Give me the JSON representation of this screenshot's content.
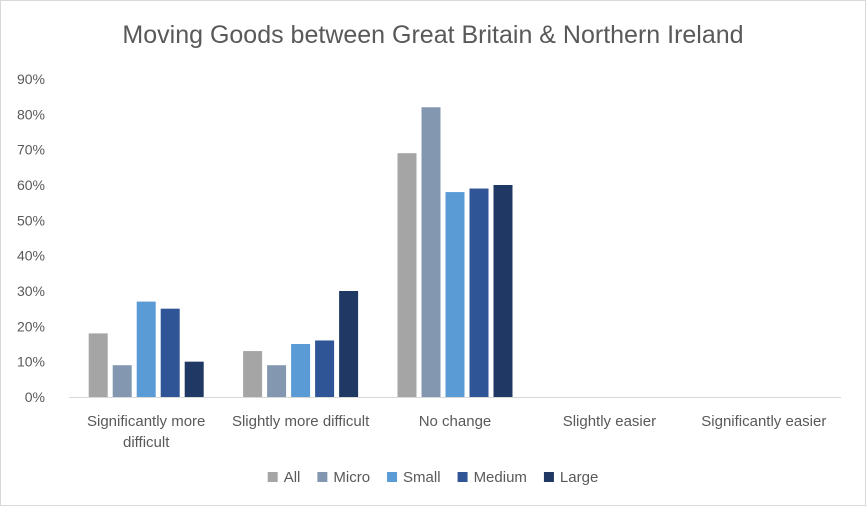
{
  "chart_data": {
    "type": "bar",
    "title": "Moving Goods between Great Britain & Northern Ireland",
    "xlabel": "",
    "ylabel": "",
    "categories": [
      [
        "Significantly more",
        "difficult"
      ],
      [
        "Slightly more difficult"
      ],
      [
        "No change"
      ],
      [
        "Slightly easier"
      ],
      [
        "Significantly easier"
      ]
    ],
    "ylim": [
      0,
      90
    ],
    "yticks": [
      "0%",
      "10%",
      "20%",
      "30%",
      "40%",
      "50%",
      "60%",
      "70%",
      "80%",
      "90%"
    ],
    "grid": false,
    "legend_position": "bottom",
    "series": [
      {
        "name": "All",
        "color": "#a5a5a5",
        "values": [
          18,
          13,
          69,
          0,
          0
        ]
      },
      {
        "name": "Micro",
        "color": "#8497b0",
        "values": [
          9,
          9,
          82,
          0,
          0
        ]
      },
      {
        "name": "Small",
        "color": "#5b9bd5",
        "values": [
          27,
          15,
          58,
          0,
          0
        ]
      },
      {
        "name": "Medium",
        "color": "#2f5597",
        "values": [
          25,
          16,
          59,
          0,
          0
        ]
      },
      {
        "name": "Large",
        "color": "#203864",
        "values": [
          10,
          30,
          60,
          0,
          0
        ]
      }
    ]
  }
}
